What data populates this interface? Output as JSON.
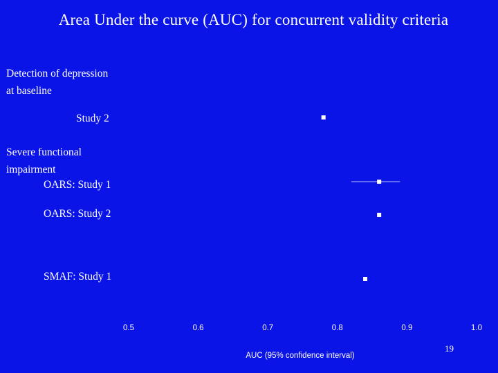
{
  "slide": {
    "title": "Area Under the curve (AUC) for concurrent validity criteria",
    "page_number": "19"
  },
  "groups": [
    {
      "heading_line1": "Detection of depression",
      "heading_line2": "at baseline"
    },
    {
      "heading_line1": "Severe functional",
      "heading_line2": "impairment"
    }
  ],
  "rows": [
    {
      "label": "Study 2"
    },
    {
      "label": "OARS: Study 1"
    },
    {
      "label": "OARS: Study 2"
    },
    {
      "label": "SMAF: Study 1"
    }
  ],
  "chart_data": {
    "type": "scatter",
    "title": "Area Under the curve (AUC) for concurrent validity criteria",
    "xlabel": "AUC (95% confidence interval)",
    "ylabel": "",
    "xlim": [
      0.5,
      1.0
    ],
    "x_ticks": [
      "0.5",
      "0.6",
      "0.7",
      "0.8",
      "0.9",
      "1.0"
    ],
    "grid": false,
    "colors": {
      "background": "#0a14e6",
      "marker": "#ffffff",
      "ci_line": "#ffffff"
    },
    "points": [
      {
        "label": "Study 2",
        "group": "Detection of depression at baseline",
        "auc": 0.78
      },
      {
        "label": "OARS: Study 1",
        "group": "Severe functional impairment",
        "auc": 0.86,
        "ci": [
          0.82,
          0.89
        ]
      },
      {
        "label": "OARS: Study 2",
        "group": "Severe functional impairment",
        "auc": 0.86
      },
      {
        "label": "SMAF: Study 1",
        "group": "Severe functional impairment",
        "auc": 0.84
      }
    ]
  }
}
